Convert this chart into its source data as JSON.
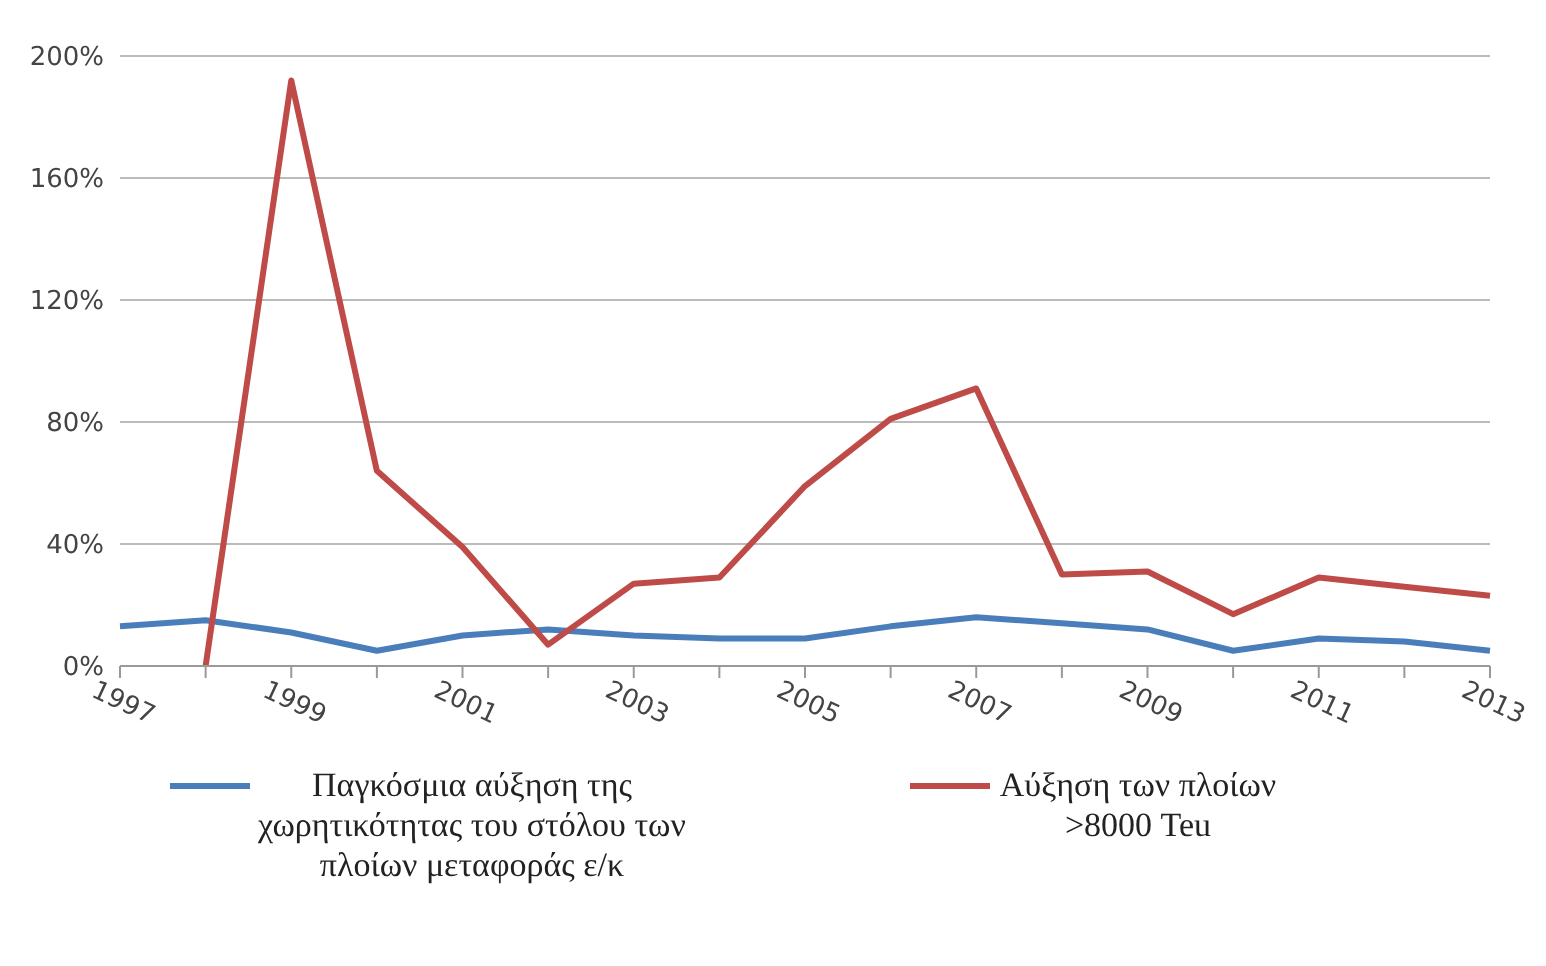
{
  "chart_data": {
    "type": "line",
    "categories": [
      "1997",
      null,
      "1999",
      null,
      "2001",
      null,
      "2003",
      null,
      "2005",
      null,
      "2007",
      null,
      "2009",
      null,
      "2011",
      null,
      "2013"
    ],
    "series": [
      {
        "name": "Παγκόσμια αύξηση της χωρητικότητας του στόλου των πλοίων μεταφοράς ε/κ",
        "color": "#4a7ebb",
        "values": [
          13,
          15,
          11,
          5,
          10,
          12,
          10,
          9,
          9,
          13,
          16,
          14,
          12,
          5,
          9,
          8,
          5
        ]
      },
      {
        "name": "Αύξηση των πλοίων >8000 Teu",
        "color": "#be4b48",
        "values": [
          null,
          0,
          192,
          64,
          39,
          7,
          27,
          29,
          59,
          81,
          91,
          30,
          31,
          17,
          29,
          26,
          23
        ]
      }
    ],
    "ylim": [
      0,
      200
    ],
    "yticks": [
      {
        "value": 0,
        "label": "0%"
      },
      {
        "value": 40,
        "label": "40%"
      },
      {
        "value": 80,
        "label": "80%"
      },
      {
        "value": 120,
        "label": "120%"
      },
      {
        "value": 160,
        "label": "160%"
      },
      {
        "value": 200,
        "label": "200%"
      }
    ],
    "grid": "y",
    "legend": "bottom",
    "marker": "none",
    "line_style": "solid"
  }
}
